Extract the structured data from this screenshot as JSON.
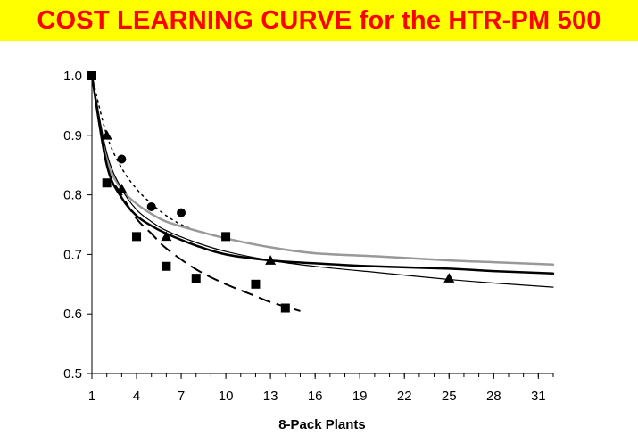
{
  "slide": {
    "title": "COST LEARNING CURVE for the HTR-PM 500",
    "title_color": "#ff0000",
    "title_background": "#ffff00"
  },
  "chart_data": {
    "type": "scatter",
    "title": "",
    "xlabel": "8-Pack Plants",
    "ylabel": "",
    "xlim": [
      1,
      32
    ],
    "ylim": [
      0.5,
      1.0
    ],
    "x_ticks": [
      1,
      4,
      7,
      10,
      13,
      16,
      19,
      22,
      25,
      28,
      31
    ],
    "y_ticks": [
      0.5,
      0.6,
      0.7,
      0.8,
      0.9,
      1.0
    ],
    "y_tick_labels": [
      "0.5",
      "0.6",
      "0.7",
      "0.8",
      "0.9",
      "1.0"
    ],
    "grid": false,
    "legend": "none",
    "markers": [
      {
        "marker": "square",
        "color": "#000000",
        "points": [
          {
            "x": 1,
            "y": 1.0
          },
          {
            "x": 2,
            "y": 0.82
          },
          {
            "x": 4,
            "y": 0.73
          },
          {
            "x": 6,
            "y": 0.68
          },
          {
            "x": 8,
            "y": 0.66
          },
          {
            "x": 10,
            "y": 0.73
          },
          {
            "x": 12,
            "y": 0.65
          },
          {
            "x": 14,
            "y": 0.61
          }
        ]
      },
      {
        "marker": "circle",
        "color": "#000000",
        "points": [
          {
            "x": 3,
            "y": 0.86
          },
          {
            "x": 5,
            "y": 0.78
          },
          {
            "x": 7,
            "y": 0.77
          }
        ]
      },
      {
        "marker": "triangle",
        "color": "#000000",
        "points": [
          {
            "x": 2,
            "y": 0.9
          },
          {
            "x": 3,
            "y": 0.81
          },
          {
            "x": 6,
            "y": 0.73
          },
          {
            "x": 13,
            "y": 0.69
          },
          {
            "x": 25,
            "y": 0.66
          }
        ]
      }
    ],
    "curves": [
      {
        "style": "dotted",
        "color": "#000000",
        "width": 1.5,
        "points": [
          {
            "x": 1,
            "y": 1.0
          },
          {
            "x": 2,
            "y": 0.9
          },
          {
            "x": 3,
            "y": 0.845
          },
          {
            "x": 4,
            "y": 0.81
          },
          {
            "x": 5,
            "y": 0.785
          },
          {
            "x": 6,
            "y": 0.765
          },
          {
            "x": 7,
            "y": 0.75
          },
          {
            "x": 8,
            "y": 0.74
          }
        ]
      },
      {
        "style": "dashed",
        "color": "#000000",
        "width": 2,
        "points": [
          {
            "x": 1,
            "y": 1.0
          },
          {
            "x": 2,
            "y": 0.85
          },
          {
            "x": 3,
            "y": 0.8
          },
          {
            "x": 4,
            "y": 0.76
          },
          {
            "x": 5,
            "y": 0.735
          },
          {
            "x": 6,
            "y": 0.71
          },
          {
            "x": 8,
            "y": 0.675
          },
          {
            "x": 10,
            "y": 0.65
          },
          {
            "x": 12,
            "y": 0.63
          },
          {
            "x": 13,
            "y": 0.62
          },
          {
            "x": 15,
            "y": 0.605
          }
        ]
      },
      {
        "style": "solid",
        "color": "#999999",
        "width": 2.5,
        "points": [
          {
            "x": 1,
            "y": 1.0
          },
          {
            "x": 2,
            "y": 0.86
          },
          {
            "x": 3,
            "y": 0.81
          },
          {
            "x": 4,
            "y": 0.785
          },
          {
            "x": 5,
            "y": 0.768
          },
          {
            "x": 6,
            "y": 0.755
          },
          {
            "x": 8,
            "y": 0.74
          },
          {
            "x": 10,
            "y": 0.727
          },
          {
            "x": 13,
            "y": 0.712
          },
          {
            "x": 16,
            "y": 0.702
          },
          {
            "x": 20,
            "y": 0.697
          },
          {
            "x": 25,
            "y": 0.69
          },
          {
            "x": 28,
            "y": 0.687
          },
          {
            "x": 32,
            "y": 0.683
          }
        ]
      },
      {
        "style": "solid",
        "color": "#000000",
        "width": 2.5,
        "points": [
          {
            "x": 1,
            "y": 1.0
          },
          {
            "x": 2,
            "y": 0.85
          },
          {
            "x": 3,
            "y": 0.795
          },
          {
            "x": 4,
            "y": 0.765
          },
          {
            "x": 5,
            "y": 0.748
          },
          {
            "x": 6,
            "y": 0.735
          },
          {
            "x": 8,
            "y": 0.715
          },
          {
            "x": 10,
            "y": 0.7
          },
          {
            "x": 13,
            "y": 0.69
          },
          {
            "x": 16,
            "y": 0.685
          },
          {
            "x": 20,
            "y": 0.68
          },
          {
            "x": 25,
            "y": 0.676
          },
          {
            "x": 28,
            "y": 0.672
          },
          {
            "x": 32,
            "y": 0.668
          }
        ]
      },
      {
        "style": "solid",
        "color": "#000000",
        "width": 1.2,
        "points": [
          {
            "x": 1,
            "y": 1.0
          },
          {
            "x": 2,
            "y": 0.87
          },
          {
            "x": 3,
            "y": 0.81
          },
          {
            "x": 4,
            "y": 0.775
          },
          {
            "x": 5,
            "y": 0.755
          },
          {
            "x": 6,
            "y": 0.74
          },
          {
            "x": 8,
            "y": 0.72
          },
          {
            "x": 10,
            "y": 0.705
          },
          {
            "x": 13,
            "y": 0.69
          },
          {
            "x": 16,
            "y": 0.68
          },
          {
            "x": 20,
            "y": 0.67
          },
          {
            "x": 25,
            "y": 0.658
          },
          {
            "x": 28,
            "y": 0.652
          },
          {
            "x": 32,
            "y": 0.645
          }
        ]
      }
    ]
  }
}
